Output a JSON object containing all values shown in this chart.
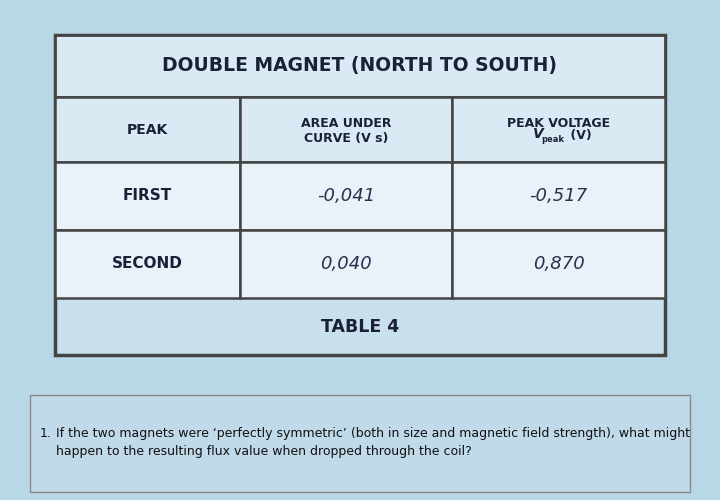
{
  "title": "DOUBLE MAGNET (NORTH TO SOUTH)",
  "col0_header": "PEAK",
  "col1_header_line1": "AREA UNDER",
  "col1_header_line2": "CURVE (V s)",
  "col2_header_line1": "PEAK VOLTAGE",
  "col2_header_V": "V",
  "col2_header_sub": "peak",
  "col2_header_end": " (V)",
  "row1_col0": "FIRST",
  "row1_col1": "-0,041",
  "row1_col2": "-0,517",
  "row2_col0": "SECOND",
  "row2_col1": "0,040",
  "row2_col2": "0,870",
  "table_caption": "TABLE 4",
  "q_num": "1.",
  "q_line1": "If the two magnets were ‘perfectly symmetric’ (both in size and magnetic field strength), what might",
  "q_line2": "happen to the resulting flux value when dropped through the coil?",
  "bg_color": "#b8d8e8",
  "table_area_bg": "#c8e0ec",
  "cell_bg": "#e8f2f8",
  "header_cell_bg": "#daeaf4",
  "title_cell_bg": "#daeaf4",
  "border_color": "#444444",
  "text_dark": "#1a2035",
  "qbox_bg": "#c0daea",
  "qbox_border": "#888888"
}
